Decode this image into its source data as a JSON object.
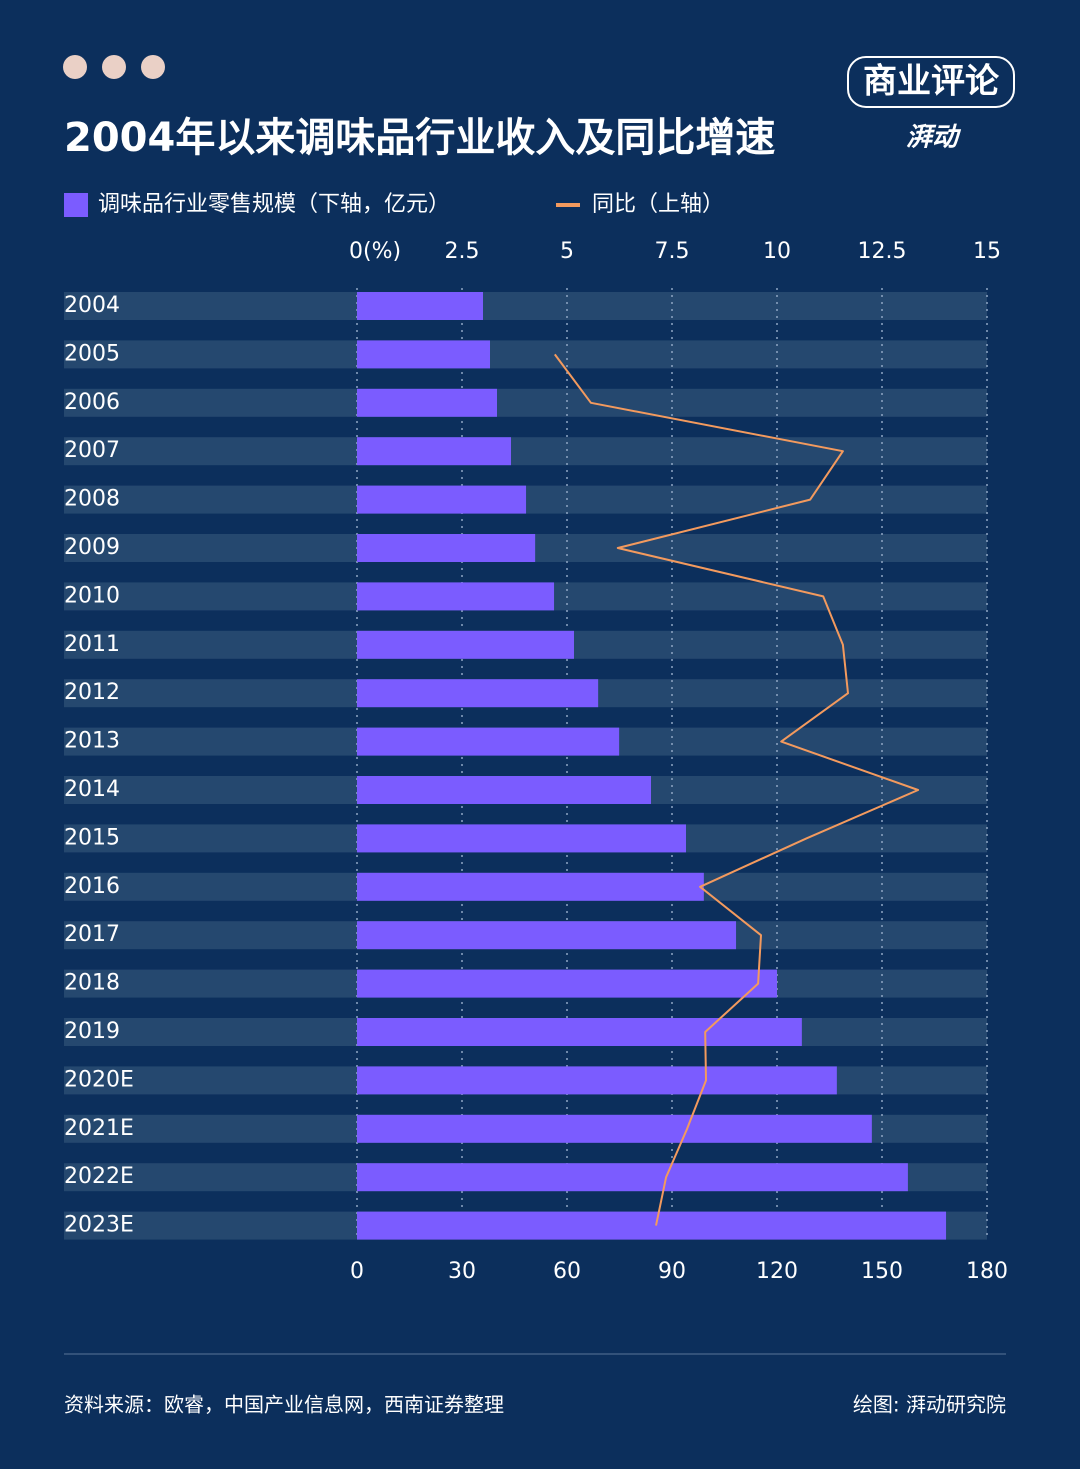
{
  "chart_data": {
    "type": "bar",
    "orientation": "horizontal",
    "title": "2004年以来调味品行业收入及同比增速",
    "categories": [
      "2004",
      "2005",
      "2006",
      "2007",
      "2008",
      "2009",
      "2010",
      "2011",
      "2012",
      "2013",
      "2014",
      "2015",
      "2016",
      "2017",
      "2018",
      "2019",
      "2020E",
      "2021E",
      "2022E",
      "2023E"
    ],
    "series": [
      {
        "name": "调味品行业零售规模（下轴，亿元）",
        "color": "#7b5cff",
        "values": [
          36,
          38,
          40,
          44,
          48.3,
          50.9,
          56.3,
          62,
          68.9,
          74.9,
          84,
          94,
          99.1,
          108.3,
          120,
          127.1,
          137.1,
          147.1,
          157.4,
          168.3
        ]
      },
      {
        "name": "同比（上轴）",
        "color": "#f39a5e",
        "type": "line",
        "axis": "x2",
        "values": [
          null,
          4.71,
          5.57,
          11.57,
          10.79,
          6.21,
          11.1,
          11.57,
          11.69,
          10.1,
          13.36,
          10.7,
          8.17,
          9.62,
          9.55,
          8.29,
          8.31,
          7.86,
          7.36,
          7.12
        ]
      }
    ],
    "xlim": [
      0,
      180
    ],
    "xticks": [
      0,
      30,
      60,
      90,
      120,
      150,
      180
    ],
    "x2lim": [
      0,
      15
    ],
    "x2ticks": [
      {
        "value": 0,
        "label": "0(%)"
      },
      2.5,
      5,
      7.5,
      10,
      12.5,
      15
    ],
    "grid": true,
    "legend": "top-left",
    "logo_text": "商业评论",
    "logo_subtext": "湃动",
    "source": "资料来源：欧睿，中国产业信息网，西南证券整理",
    "credit": "绘图: 湃动研究院"
  }
}
